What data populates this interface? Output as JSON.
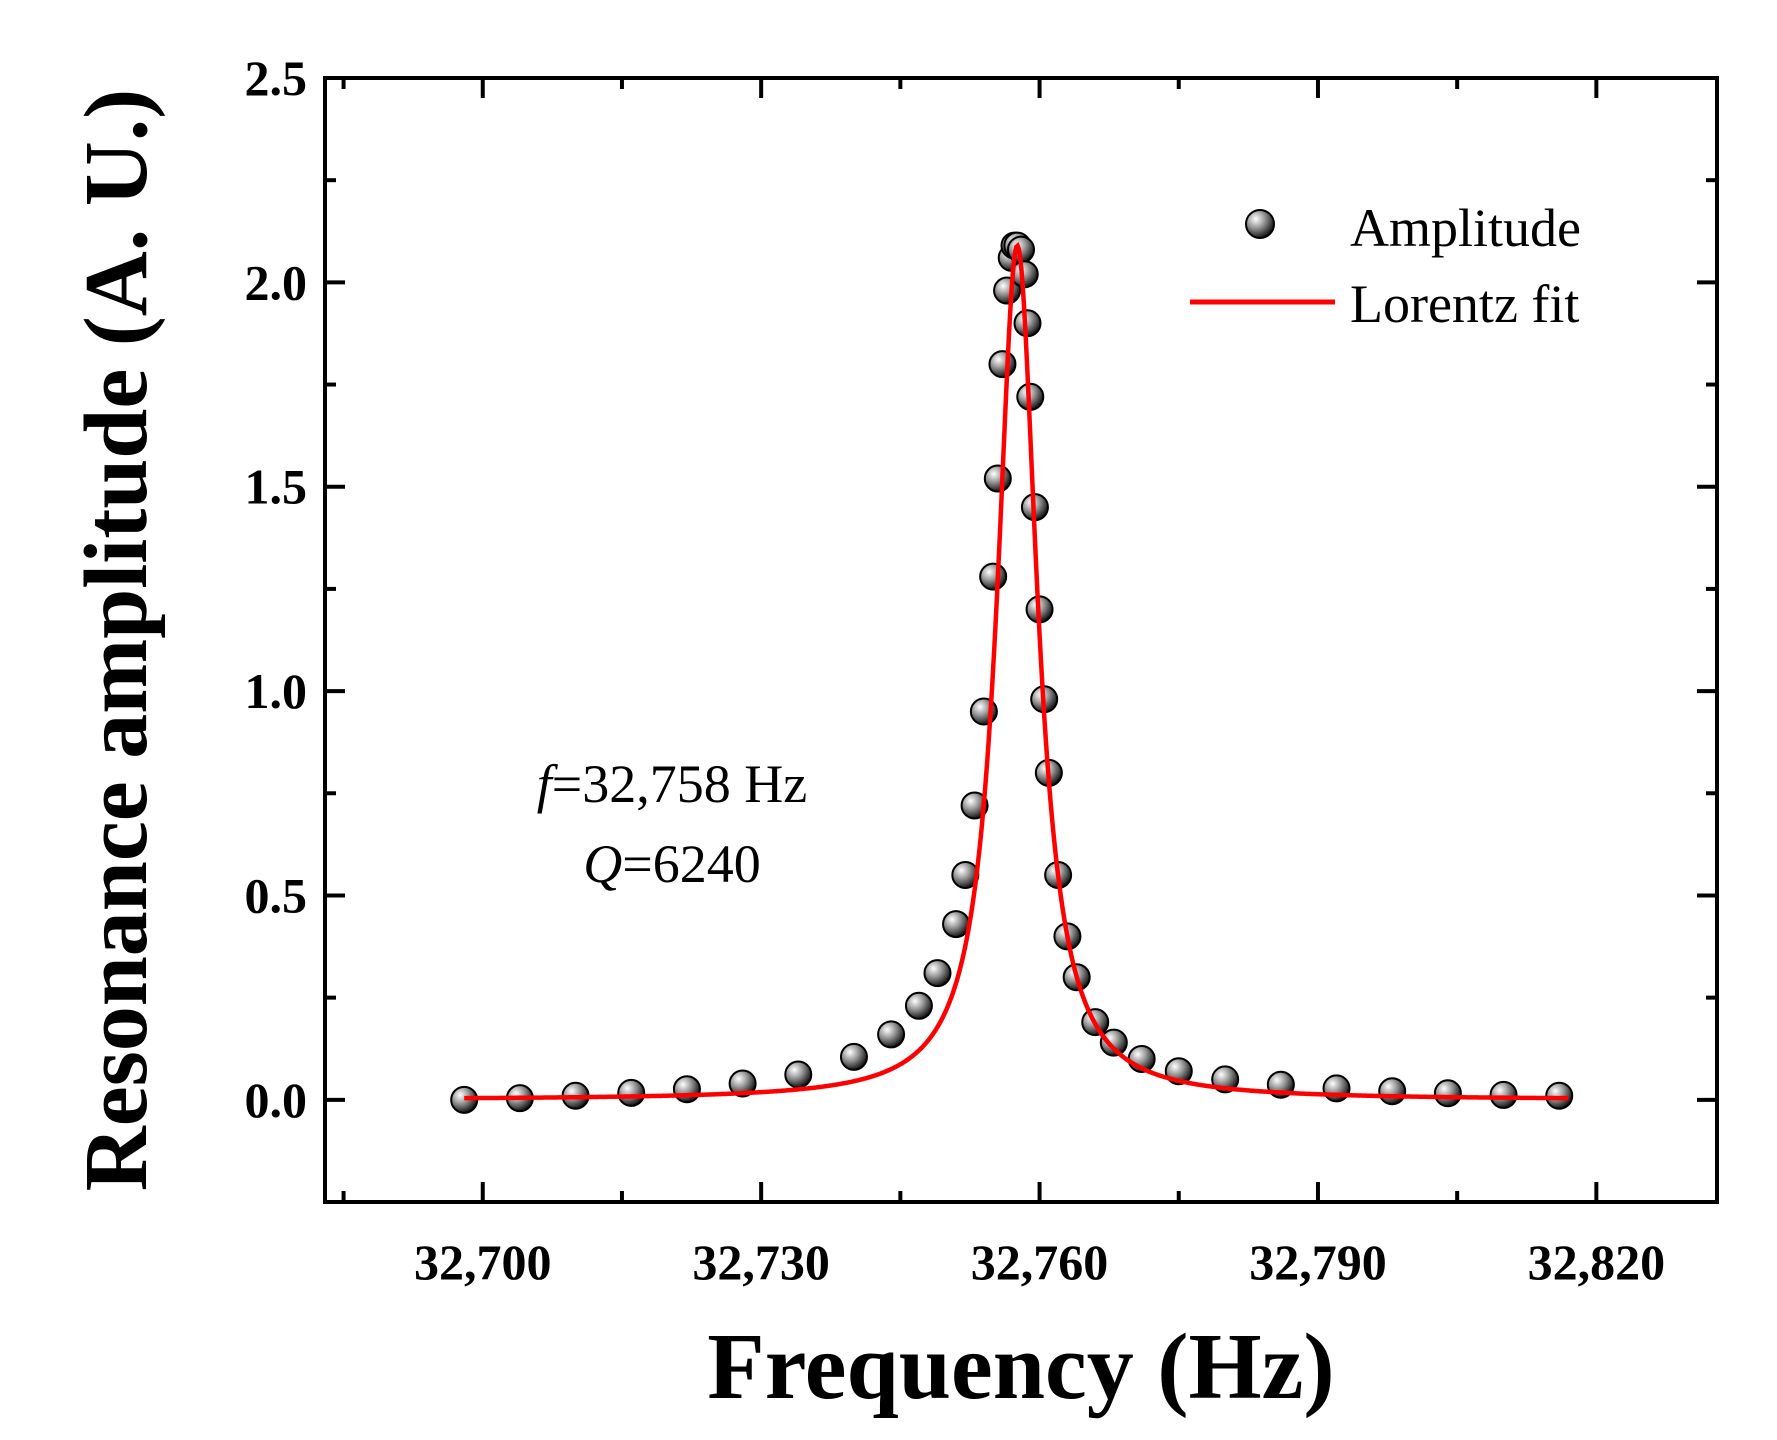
{
  "chart_data": {
    "type": "scatter",
    "title": "",
    "xlabel": "Frequency (Hz)",
    "ylabel": "Resonance amplitude (A. U.)",
    "xlim": [
      32683,
      32833
    ],
    "ylim": [
      -0.25,
      2.5
    ],
    "x_ticks": [
      32700,
      32730,
      32760,
      32790,
      32820
    ],
    "x_tick_labels": [
      "32,700",
      "32,730",
      "32,760",
      "32,790",
      "32,820"
    ],
    "y_ticks": [
      0.0,
      0.5,
      1.0,
      1.5,
      2.0,
      2.5
    ],
    "y_tick_labels": [
      "0.0",
      "0.5",
      "1.0",
      "1.5",
      "2.0",
      "2.5"
    ],
    "grid": false,
    "legend_position": "top-right",
    "series": [
      {
        "name": "Amplitude",
        "kind": "scatter",
        "color": "#555555",
        "x": [
          32698,
          32704,
          32710,
          32716,
          32722,
          32728,
          32734,
          32740,
          32744,
          32747,
          32749,
          32751,
          32752,
          32753,
          32754,
          32755,
          32755.5,
          32756,
          32756.5,
          32757,
          32757.3,
          32757.6,
          32758,
          32758.4,
          32758.7,
          32759,
          32759.5,
          32760,
          32760.5,
          32761,
          32762,
          32763,
          32764,
          32766,
          32768,
          32771,
          32775,
          32780,
          32786,
          32792,
          32798,
          32804,
          32810,
          32816
        ],
        "y": [
          0.0,
          0.004,
          0.01,
          0.017,
          0.026,
          0.04,
          0.062,
          0.105,
          0.16,
          0.23,
          0.31,
          0.43,
          0.55,
          0.72,
          0.95,
          1.28,
          1.52,
          1.8,
          1.98,
          2.06,
          2.09,
          2.09,
          2.08,
          2.02,
          1.9,
          1.72,
          1.45,
          1.2,
          0.98,
          0.8,
          0.55,
          0.4,
          0.3,
          0.19,
          0.14,
          0.1,
          0.07,
          0.05,
          0.037,
          0.028,
          0.021,
          0.016,
          0.012,
          0.01
        ]
      },
      {
        "name": "Lorentz fit",
        "kind": "line",
        "color": "#ff0000",
        "model": "lorentz",
        "x0": 32757.6,
        "fwhm": 5.25,
        "amplitude": 2.09,
        "x_range": [
          32698,
          32817
        ]
      }
    ],
    "annotations": [
      {
        "symbol": "f",
        "text": "=32,758 Hz"
      },
      {
        "symbol": "Q",
        "text": "=6240"
      }
    ]
  }
}
